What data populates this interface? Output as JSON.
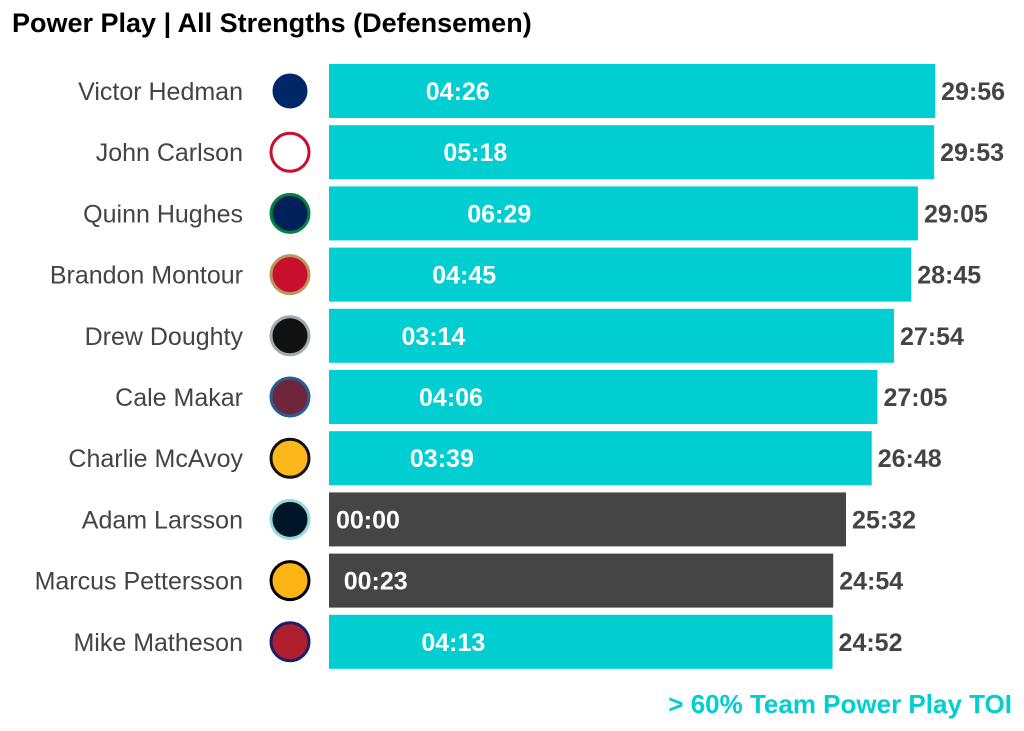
{
  "chart_data": {
    "type": "bar",
    "orientation": "horizontal",
    "title": "Power Play | All Strengths (Defensemen)",
    "units": "minutes:seconds",
    "categories": [
      "Victor Hedman",
      "John Carlson",
      "Quinn Hughes",
      "Brandon Montour",
      "Drew Doughty",
      "Cale Makar",
      "Charlie McAvoy",
      "Adam Larsson",
      "Marcus Pettersson",
      "Mike Matheson"
    ],
    "teams": [
      "tampa-bay-lightning",
      "washington-capitals",
      "vancouver-canucks",
      "florida-panthers",
      "los-angeles-kings",
      "colorado-avalanche",
      "boston-bruins",
      "seattle-kraken",
      "pittsburgh-penguins",
      "montreal-canadiens"
    ],
    "total_toi": [
      "29:56",
      "29:53",
      "29:05",
      "28:45",
      "27:54",
      "27:05",
      "26:48",
      "25:32",
      "24:54",
      "24:52"
    ],
    "pp_toi": [
      "04:26",
      "05:18",
      "06:29",
      "04:45",
      "03:14",
      "04:06",
      "03:39",
      "00:00",
      "00:23",
      "04:13"
    ],
    "above_60pct_team_pp": [
      true,
      true,
      true,
      true,
      true,
      true,
      true,
      false,
      false,
      true
    ],
    "legend_note": "> 60% Team Power Play TOI",
    "colors": {
      "highlight": "#00CED1",
      "other": "#454545",
      "text": "#444444"
    }
  }
}
